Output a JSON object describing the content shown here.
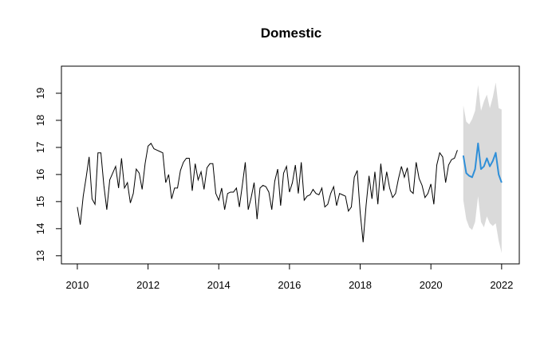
{
  "chart_data": {
    "type": "line",
    "title": "Domestic",
    "xlabel": "",
    "ylabel": "",
    "xlim": [
      2009.55,
      2022.5
    ],
    "ylim": [
      12.7,
      20.0
    ],
    "x_ticks": [
      2010,
      2012,
      2014,
      2016,
      2018,
      2020,
      2022
    ],
    "y_ticks": [
      13,
      14,
      15,
      16,
      17,
      18,
      19
    ],
    "grid": false,
    "legend": "none",
    "colors": {
      "history": "#000000",
      "forecast": "#2f8fd8",
      "interval": "#dadada"
    },
    "series": [
      {
        "role": "history",
        "start": 2010.0,
        "step": 0.08333,
        "values": [
          14.8,
          14.15,
          15.2,
          15.9,
          16.65,
          15.1,
          14.9,
          16.8,
          16.8,
          15.6,
          14.7,
          15.8,
          16.05,
          16.3,
          15.5,
          16.6,
          15.5,
          15.7,
          14.95,
          15.3,
          16.2,
          16.05,
          15.45,
          16.4,
          17.05,
          17.15,
          16.95,
          16.9,
          16.85,
          16.8,
          15.7,
          16.0,
          15.1,
          15.5,
          15.5,
          16.15,
          16.45,
          16.6,
          16.6,
          15.4,
          16.4,
          15.8,
          16.1,
          15.45,
          16.25,
          16.4,
          16.4,
          15.3,
          15.05,
          15.5,
          14.7,
          15.3,
          15.35,
          15.35,
          15.5,
          14.8,
          15.6,
          16.45,
          14.7,
          15.15,
          15.7,
          14.35,
          15.5,
          15.6,
          15.55,
          15.35,
          14.7,
          15.75,
          16.2,
          14.85,
          16.05,
          16.3,
          15.35,
          15.7,
          16.35,
          15.3,
          16.45,
          15.05,
          15.2,
          15.25,
          15.45,
          15.3,
          15.25,
          15.5,
          14.8,
          14.9,
          15.3,
          15.55,
          14.85,
          15.3,
          15.25,
          15.2,
          14.65,
          14.8,
          15.9,
          16.15,
          14.6,
          13.5,
          14.85,
          15.95,
          15.1,
          16.1,
          14.9,
          16.4,
          15.4,
          16.1,
          15.5,
          15.15,
          15.3,
          15.85,
          16.3,
          15.9,
          16.25,
          15.4,
          15.3,
          16.45,
          15.85,
          15.6,
          15.15,
          15.3,
          15.65,
          14.9,
          16.35,
          16.8,
          16.65,
          15.7,
          16.35,
          16.55,
          16.6,
          16.9
        ]
      },
      {
        "role": "forecast",
        "start": 2020.917,
        "step": 0.08333,
        "values": [
          16.7,
          16.05,
          15.95,
          15.9,
          16.2,
          17.15,
          16.2,
          16.3,
          16.6,
          16.3,
          16.5,
          16.8,
          16.0,
          15.7
        ],
        "lower": [
          15.05,
          14.35,
          14.05,
          13.95,
          14.25,
          15.2,
          14.25,
          14.05,
          14.45,
          14.2,
          14.1,
          14.2,
          13.55,
          13.1
        ],
        "upper": [
          18.55,
          17.95,
          17.85,
          18.05,
          18.35,
          19.3,
          18.35,
          18.7,
          18.95,
          18.45,
          18.85,
          19.4,
          18.45,
          18.4
        ]
      }
    ]
  }
}
